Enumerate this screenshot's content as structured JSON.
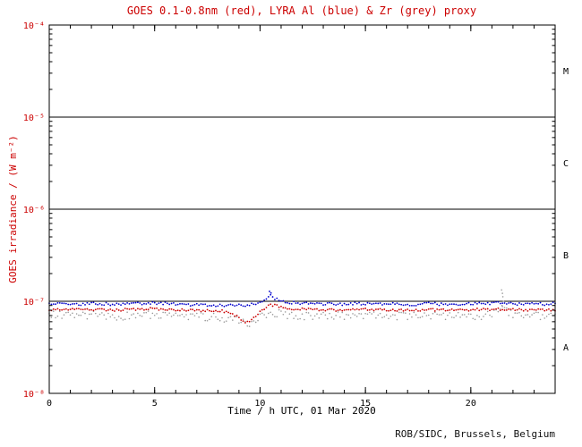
{
  "page": {
    "credit": "ROB/SIDC, Brussels, Belgium"
  },
  "chart_data": {
    "type": "scatter",
    "title": "GOES 0.1-0.8nm (red), LYRA Al (blue) & Zr (grey) proxy",
    "xlabel": "Time / h UTC, 01 Mar 2020",
    "ylabel": "GOES irradiance / (W m⁻²)",
    "xlim": [
      0,
      24
    ],
    "ylim_log10": [
      -8,
      -4
    ],
    "x_major_ticks": [
      0,
      5,
      10,
      15,
      20
    ],
    "x_minor_step": 1,
    "y_ticks": [
      {
        "log": -4,
        "label": "10⁻⁴"
      },
      {
        "log": -5,
        "label": "10⁻⁵"
      },
      {
        "log": -6,
        "label": "10⁻⁶"
      },
      {
        "log": -7,
        "label": "10⁻⁷"
      },
      {
        "log": -8,
        "label": "10⁻⁸"
      }
    ],
    "hlines_log10": [
      -5,
      -6,
      -7
    ],
    "class_labels": [
      {
        "label": "M",
        "log_center": -4.5
      },
      {
        "label": "C",
        "log_center": -5.5
      },
      {
        "label": "B",
        "log_center": -6.5
      },
      {
        "label": "A",
        "log_center": -7.5
      }
    ],
    "grid": "horizontal-decades",
    "legend_position": "in-title",
    "sample_step_h": 0.1,
    "series": [
      {
        "name": "LYRA Zr proxy",
        "color": "#9a9a9a",
        "dot_r": 0.8,
        "noise": 0.1,
        "seed": 11,
        "profile": [
          [
            0,
            7.2e-08
          ],
          [
            1,
            7e-08
          ],
          [
            2,
            7.1e-08
          ],
          [
            3,
            6.9e-08
          ],
          [
            4,
            7e-08
          ],
          [
            5,
            7.2e-08
          ],
          [
            6,
            7e-08
          ],
          [
            7,
            6.9e-08
          ],
          [
            8,
            6.7e-08
          ],
          [
            9,
            6.2e-08
          ],
          [
            9.5,
            5.7e-08
          ],
          [
            10,
            6.6e-08
          ],
          [
            10.5,
            7.6e-08
          ],
          [
            11,
            7.3e-08
          ],
          [
            12,
            7e-08
          ],
          [
            13,
            6.9e-08
          ],
          [
            14,
            7e-08
          ],
          [
            15,
            7.1e-08
          ],
          [
            16,
            7e-08
          ],
          [
            17,
            6.9e-08
          ],
          [
            18,
            7e-08
          ],
          [
            19,
            6.9e-08
          ],
          [
            20,
            7e-08
          ],
          [
            21,
            7.1e-08
          ],
          [
            21.4,
            8e-08
          ],
          [
            21.5,
            9.5e-08
          ],
          [
            21.6,
            8e-08
          ],
          [
            22,
            7.2e-08
          ],
          [
            23,
            7e-08
          ],
          [
            24,
            7.1e-08
          ]
        ],
        "extra_points": [
          [
            21.46,
            1.33e-07
          ],
          [
            21.5,
            1.22e-07
          ],
          [
            21.52,
            1.12e-07
          ],
          [
            21.55,
            1e-07
          ],
          [
            21.48,
            9e-08
          ]
        ]
      },
      {
        "name": "GOES 0.1-0.8nm",
        "color": "#cc0000",
        "dot_r": 0.9,
        "noise": 0.03,
        "seed": 7,
        "profile": [
          [
            0,
            8e-08
          ],
          [
            1,
            8.2e-08
          ],
          [
            2,
            8.1e-08
          ],
          [
            3,
            8e-08
          ],
          [
            4,
            8.2e-08
          ],
          [
            5,
            8.3e-08
          ],
          [
            6,
            8.1e-08
          ],
          [
            7,
            8e-08
          ],
          [
            8,
            7.9e-08
          ],
          [
            8.5,
            7.7e-08
          ],
          [
            9,
            6.6e-08
          ],
          [
            9.3,
            5.7e-08
          ],
          [
            9.6,
            6.3e-08
          ],
          [
            10,
            7.6e-08
          ],
          [
            10.5,
            9.2e-08
          ],
          [
            11,
            8.7e-08
          ],
          [
            11.5,
            8.3e-08
          ],
          [
            12,
            8.2e-08
          ],
          [
            13,
            8.1e-08
          ],
          [
            14,
            8e-08
          ],
          [
            15,
            8.2e-08
          ],
          [
            16,
            8.1e-08
          ],
          [
            17,
            8e-08
          ],
          [
            18,
            8.1e-08
          ],
          [
            19,
            8e-08
          ],
          [
            20,
            8.1e-08
          ],
          [
            21,
            8.2e-08
          ],
          [
            22,
            8.1e-08
          ],
          [
            23,
            8e-08
          ],
          [
            24,
            8.1e-08
          ]
        ],
        "extra_points": []
      },
      {
        "name": "LYRA Al proxy",
        "color": "#0000cc",
        "dot_r": 0.9,
        "noise": 0.035,
        "seed": 3,
        "profile": [
          [
            0,
            9.4e-08
          ],
          [
            1,
            9.2e-08
          ],
          [
            2,
            9.5e-08
          ],
          [
            3,
            9.3e-08
          ],
          [
            4,
            9.5e-08
          ],
          [
            5,
            9.6e-08
          ],
          [
            6,
            9.3e-08
          ],
          [
            7,
            9.2e-08
          ],
          [
            8,
            9.1e-08
          ],
          [
            9,
            9e-08
          ],
          [
            9.5,
            9.1e-08
          ],
          [
            10,
            9.6e-08
          ],
          [
            10.3,
            1.05e-07
          ],
          [
            10.5,
            1.18e-07
          ],
          [
            10.7,
            1.08e-07
          ],
          [
            11,
            1e-07
          ],
          [
            11.5,
            9.7e-08
          ],
          [
            12,
            9.5e-08
          ],
          [
            13,
            9.4e-08
          ],
          [
            14,
            9.3e-08
          ],
          [
            15,
            9.5e-08
          ],
          [
            16,
            9.4e-08
          ],
          [
            17,
            9.2e-08
          ],
          [
            18,
            9.4e-08
          ],
          [
            19,
            9.3e-08
          ],
          [
            20,
            9.4e-08
          ],
          [
            21,
            9.5e-08
          ],
          [
            21.5,
            9.6e-08
          ],
          [
            22,
            9.4e-08
          ],
          [
            23,
            9.3e-08
          ],
          [
            24,
            9.4e-08
          ]
        ],
        "extra_points": [
          [
            10.45,
            1.28e-07
          ],
          [
            10.52,
            1.23e-07
          ]
        ]
      }
    ]
  }
}
